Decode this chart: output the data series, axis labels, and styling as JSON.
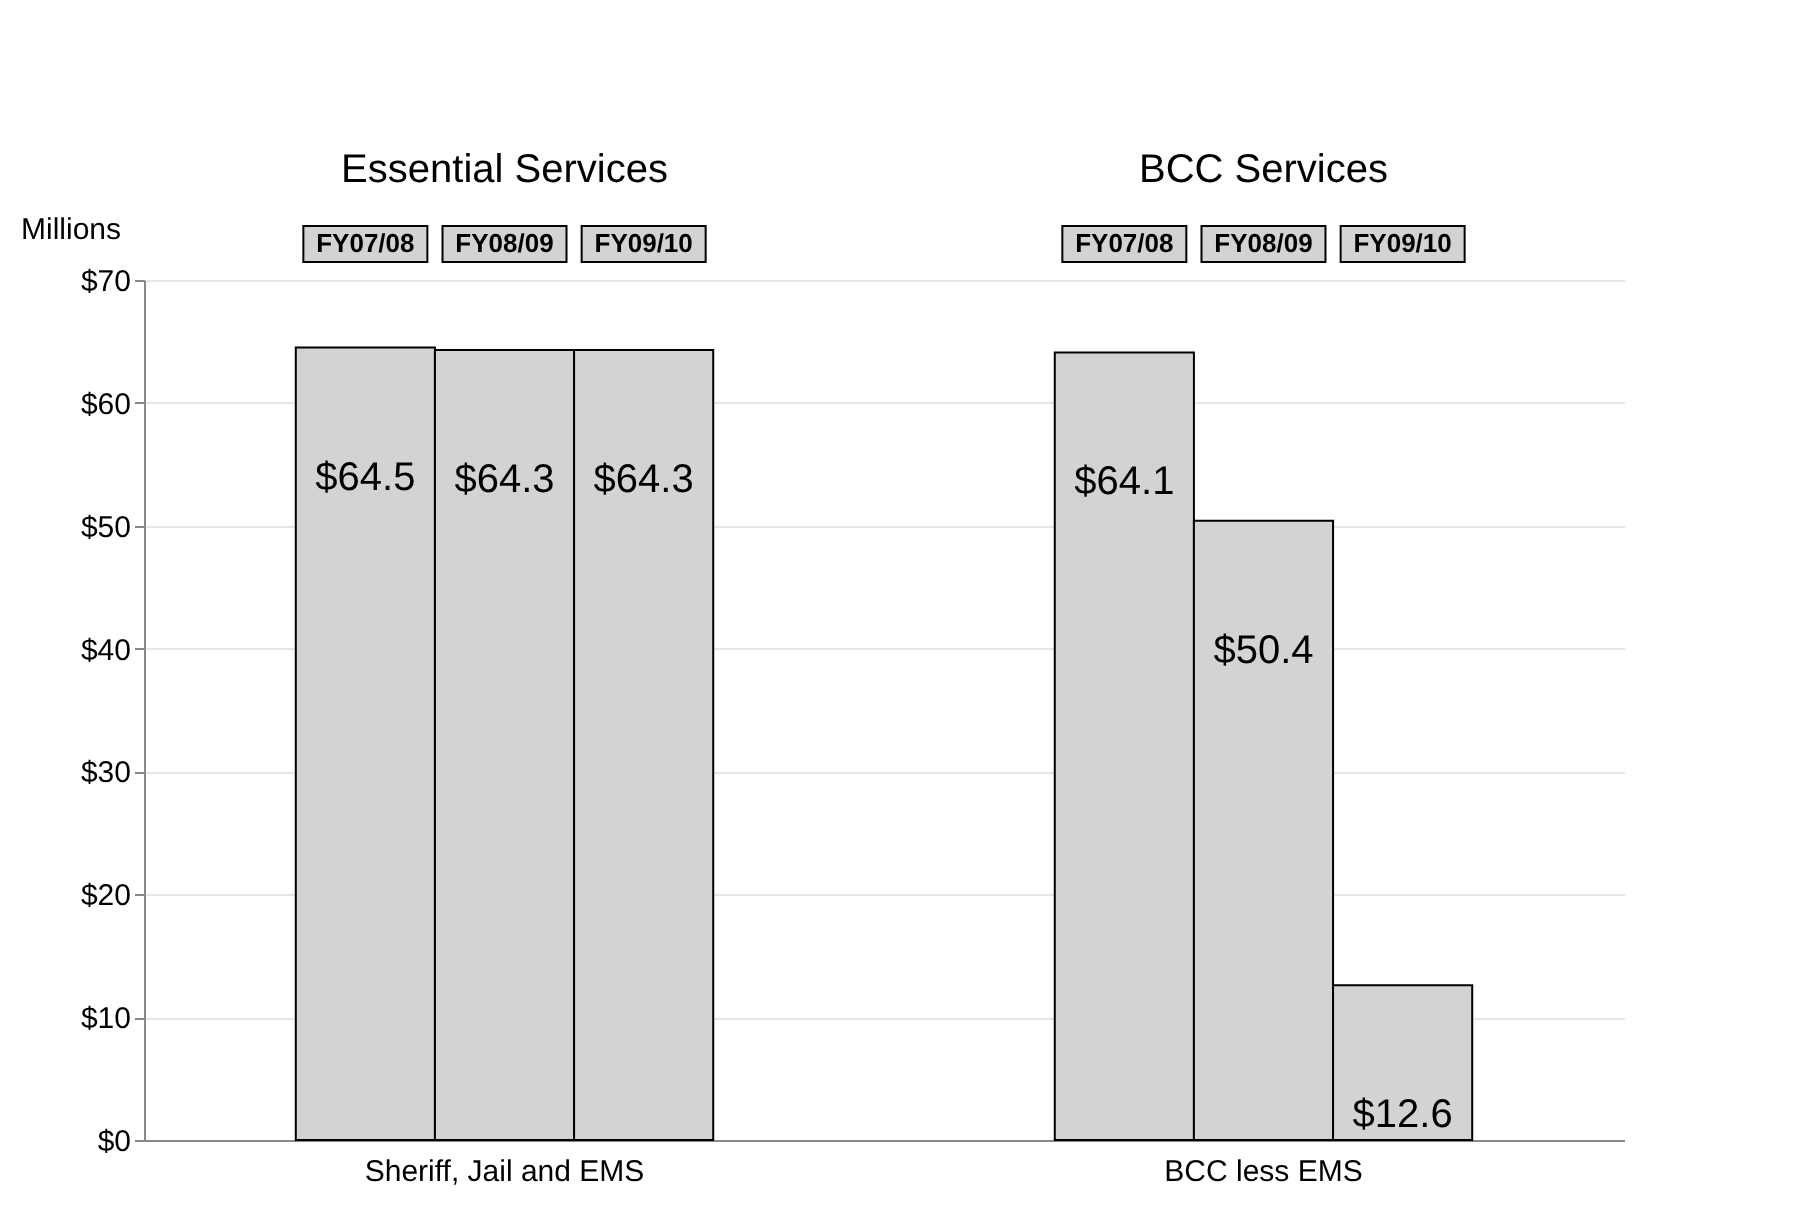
{
  "chart_data": {
    "type": "bar",
    "categories": [
      "Sheriff, Jail and EMS",
      "BCC less EMS"
    ],
    "series": [
      {
        "name": "FY07/08",
        "color": "#d3d3d3",
        "values": [
          64.5,
          64.1
        ],
        "value_labels": [
          "$64.5",
          "$64.1"
        ]
      },
      {
        "name": "FY08/09",
        "color": "#d3d3d3",
        "values": [
          64.3,
          50.4
        ],
        "value_labels": [
          "$64.3",
          "$50.4"
        ]
      },
      {
        "name": "FY09/10",
        "color": "#d3d3d3",
        "values": [
          64.3,
          12.6
        ],
        "value_labels": [
          "$64.3",
          "$12.6"
        ]
      }
    ],
    "ylabel": "Millions",
    "ylim": [
      0,
      70
    ],
    "yticks": [
      {
        "value": 0,
        "label": "$0"
      },
      {
        "value": 10,
        "label": "$10"
      },
      {
        "value": 20,
        "label": "$20"
      },
      {
        "value": 30,
        "label": "$30"
      },
      {
        "value": 40,
        "label": "$40"
      },
      {
        "value": 50,
        "label": "$50"
      },
      {
        "value": 60,
        "label": "$60"
      },
      {
        "value": 70,
        "label": "$70"
      }
    ],
    "annotations": [
      "Essential Services",
      "BCC Services"
    ],
    "grid": "y",
    "legend": "top"
  }
}
